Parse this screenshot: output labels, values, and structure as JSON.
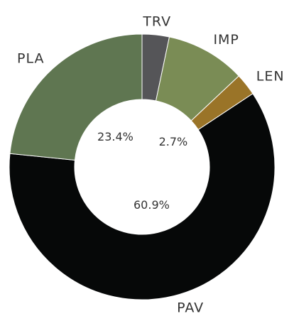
{
  "chart_data": {
    "type": "donut",
    "categories": [
      "TRV",
      "IMP",
      "LEN",
      "PAV",
      "PLA"
    ],
    "values": [
      3.3,
      9.7,
      2.7,
      60.9,
      23.4
    ],
    "value_labels": [
      null,
      null,
      "2.7%",
      "60.9%",
      "23.4%"
    ],
    "colors": [
      "#555558",
      "#7a8c55",
      "#9a7428",
      "#060808",
      "#5f7651"
    ]
  }
}
